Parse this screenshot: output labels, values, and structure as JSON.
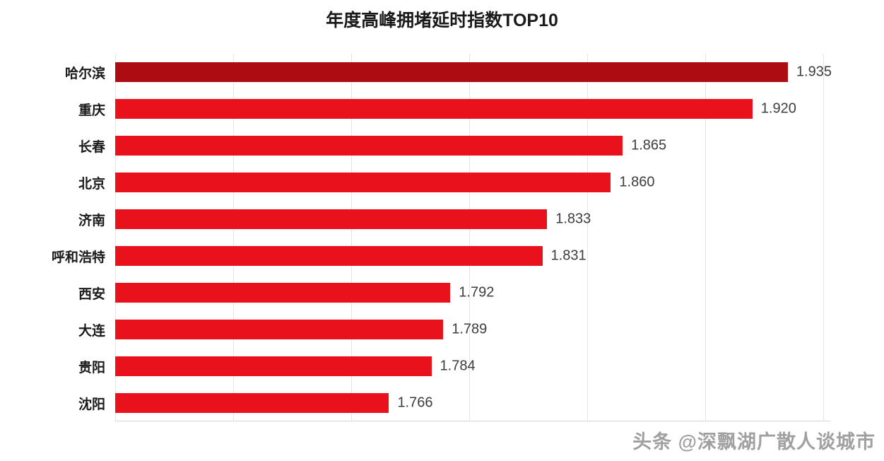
{
  "chart_data": {
    "type": "bar",
    "orientation": "horizontal",
    "title": "年度高峰拥堵延时指数TOP10",
    "categories": [
      "哈尔滨",
      "重庆",
      "长春",
      "北京",
      "济南",
      "呼和浩特",
      "西安",
      "大连",
      "贵阳",
      "沈阳"
    ],
    "values": [
      1.935,
      1.92,
      1.865,
      1.86,
      1.833,
      1.831,
      1.792,
      1.789,
      1.784,
      1.766
    ],
    "value_labels": [
      "1.935",
      "1.920",
      "1.865",
      "1.860",
      "1.833",
      "1.831",
      "1.792",
      "1.789",
      "1.784",
      "1.766"
    ],
    "xlabel": "",
    "ylabel": "",
    "xlim": [
      1.65,
      1.95
    ],
    "grid_step": 0.05,
    "grid": true,
    "legend": false,
    "colors": {
      "bar_first": "#ad0c13",
      "bar_rest": "#e8111c",
      "gridline": "#e4e4e4",
      "axis_line": "#d6d6d6",
      "title_text": "#1a1a1a",
      "value_text": "#3d3d3d"
    }
  },
  "watermark": {
    "text": "头条 @深飘湖广散人谈城市"
  }
}
